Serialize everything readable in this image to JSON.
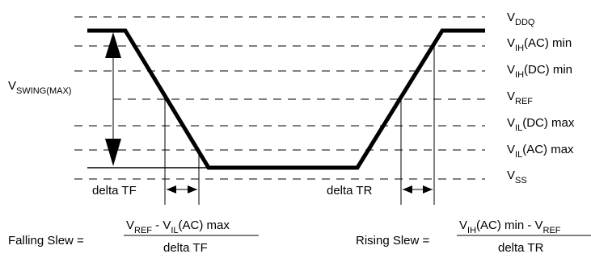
{
  "levels": {
    "vddq": {
      "base": "V",
      "sub": "DDQ",
      "rest": ""
    },
    "vih_ac": {
      "base": "V",
      "sub": "IH",
      "rest": "(AC) min"
    },
    "vih_dc": {
      "base": "V",
      "sub": "IH",
      "rest": "(DC) min"
    },
    "vref": {
      "base": "V",
      "sub": "REF",
      "rest": ""
    },
    "vil_dc": {
      "base": "V",
      "sub": "IL",
      "rest": "(DC) max"
    },
    "vil_ac": {
      "base": "V",
      "sub": "IL",
      "rest": "(AC) max"
    },
    "vss": {
      "base": "V",
      "sub": "SS",
      "rest": ""
    }
  },
  "vswing": {
    "base": "V",
    "sub": "SWING(MAX)"
  },
  "delta_tf": "delta TF",
  "delta_tr": "delta TR",
  "falling": {
    "label": "Falling Slew =",
    "num_v1": "V",
    "num_s1": "REF",
    "num_mid": " - V",
    "num_s2": "IL",
    "num_end": "(AC) max",
    "den": "delta TF"
  },
  "rising": {
    "label": "Rising Slew =",
    "num_v1": "V",
    "num_s1": "IH",
    "num_mid": "(AC) min - V",
    "num_s2": "REF",
    "den": "delta TR"
  }
}
